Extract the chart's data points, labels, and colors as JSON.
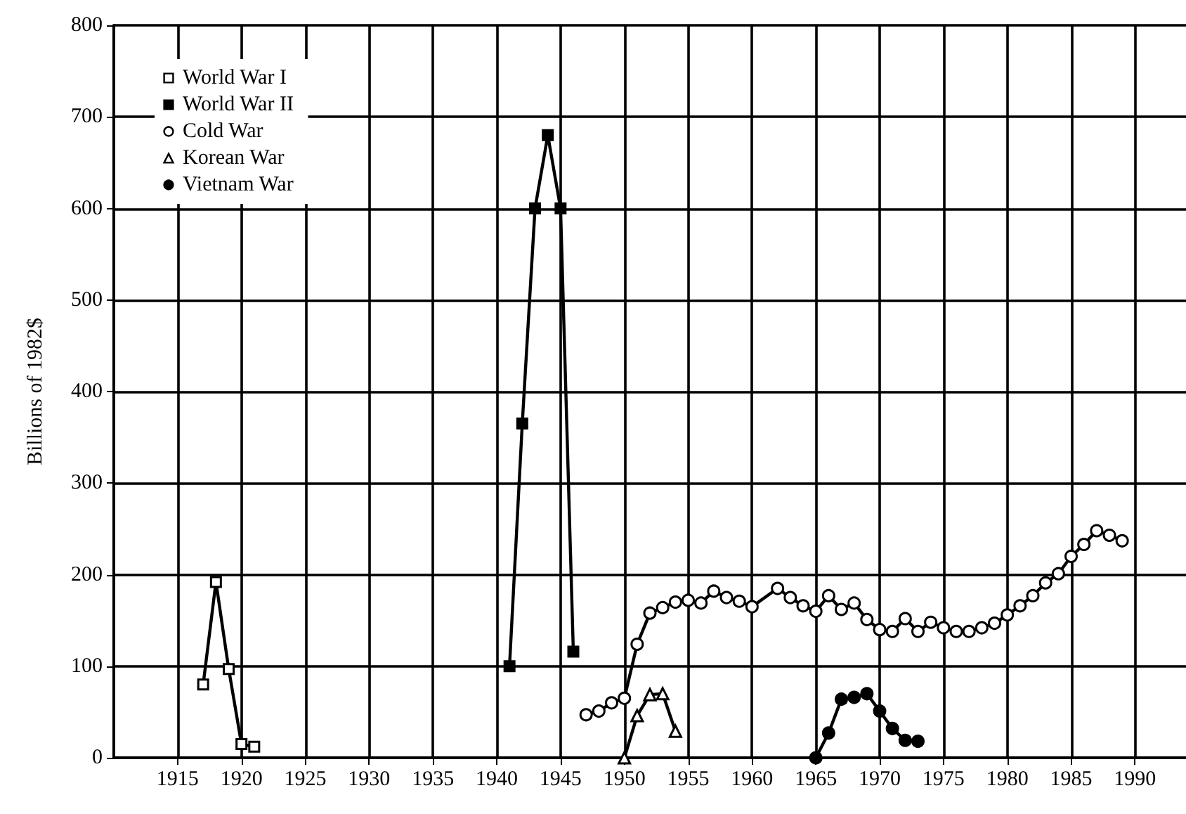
{
  "chart_data": {
    "type": "line",
    "ylabel": "Billions of 1982$",
    "xlim": [
      1910,
      1994
    ],
    "xticks": [
      1915,
      1920,
      1925,
      1930,
      1935,
      1940,
      1945,
      1950,
      1955,
      1960,
      1965,
      1970,
      1975,
      1980,
      1985,
      1990
    ],
    "ylim": [
      0,
      800
    ],
    "yticks": [
      0,
      100,
      200,
      300,
      400,
      500,
      600,
      700,
      800
    ],
    "grid": true,
    "legend": "top left",
    "series": [
      {
        "name": "World War I",
        "color": "#000000",
        "marker": "square",
        "colors": [
          "#ffffff",
          "#ffffff",
          "#ffffff",
          "#ffffff",
          "#ffffff"
        ],
        "x": [
          1917,
          1918,
          1919,
          1920,
          1921
        ],
        "values": [
          80,
          192,
          97,
          15,
          12
        ]
      },
      {
        "name": "World War II",
        "color": "#000000",
        "marker": "square",
        "colors": [
          "#000000",
          "#000000",
          "#000000",
          "#000000",
          "#000000",
          "#000000"
        ],
        "x": [
          1941,
          1942,
          1943,
          1944,
          1945,
          1946
        ],
        "values": [
          100,
          365,
          600,
          680,
          600,
          116
        ]
      },
      {
        "name": "Cold War",
        "color": "#000000",
        "marker": "circle",
        "colors": [
          "#ffffff",
          "#ffffff",
          "#ffffff",
          "#ffffff",
          "#ffffff",
          "#ffffff",
          "#ffffff",
          "#ffffff",
          "#ffffff",
          "#ffffff",
          "#ffffff",
          "#ffffff",
          "#ffffff",
          "#ffffff",
          "#ffffff",
          "#ffffff",
          "#ffffff",
          "#ffffff",
          "#ffffff",
          "#ffffff",
          "#ffffff",
          "#ffffff",
          "#ffffff",
          "#ffffff",
          "#ffffff",
          "#ffffff",
          "#ffffff",
          "#ffffff",
          "#ffffff",
          "#ffffff",
          "#ffffff",
          "#ffffff",
          "#ffffff",
          "#ffffff",
          "#ffffff",
          "#ffffff",
          "#ffffff",
          "#ffffff",
          "#ffffff",
          "#ffffff",
          "#ffffff",
          "#ffffff"
        ],
        "x": [
          1947,
          1948,
          1949,
          1950,
          1951,
          1952,
          1953,
          1954,
          1955,
          1956,
          1957,
          1958,
          1959,
          1960,
          1962,
          1963,
          1964,
          1965,
          1966,
          1967,
          1968,
          1969,
          1970,
          1971,
          1972,
          1973,
          1974,
          1975,
          1976,
          1977,
          1978,
          1979,
          1980,
          1981,
          1982,
          1983,
          1984,
          1985,
          1986,
          1987,
          1988,
          1989
        ],
        "values": [
          47,
          51,
          60,
          65,
          124,
          158,
          164,
          170,
          172,
          169,
          182,
          175,
          171,
          165,
          185,
          175,
          166,
          160,
          177,
          162,
          169,
          151,
          140,
          138,
          152,
          138,
          148,
          142,
          138,
          138,
          142,
          147,
          156,
          166,
          177,
          191,
          201,
          220,
          233,
          248,
          243,
          237
        ]
      },
      {
        "name": "Korean War",
        "color": "#000000",
        "marker": "triangle",
        "colors": [
          "#ffffff",
          "#ffffff",
          "#ffffff",
          "#ffffff",
          "#ffffff"
        ],
        "x": [
          1950,
          1951,
          1952,
          1953,
          1954
        ],
        "values": [
          0,
          46,
          69,
          70,
          29
        ]
      },
      {
        "name": "Vietnam War",
        "color": "#000000",
        "marker": "circle",
        "colors": [
          "#000000",
          "#000000",
          "#000000",
          "#000000",
          "#000000",
          "#000000",
          "#000000",
          "#000000",
          "#000000"
        ],
        "x": [
          1965,
          1966,
          1967,
          1968,
          1969,
          1970,
          1971,
          1972,
          1973
        ],
        "values": [
          0,
          27,
          64,
          66,
          70,
          51,
          32,
          19,
          18
        ]
      }
    ]
  }
}
